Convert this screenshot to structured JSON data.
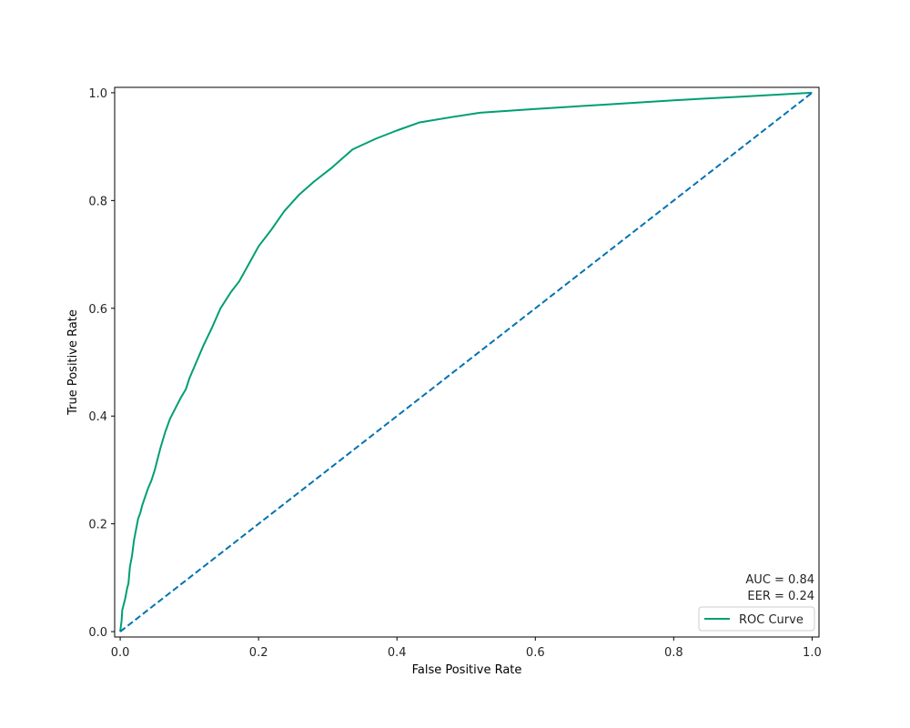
{
  "chart_data": {
    "type": "line",
    "xlabel": "False Positive Rate",
    "ylabel": "True Positive Rate",
    "xlim": [
      -0.008,
      1.01
    ],
    "ylim": [
      -0.01,
      1.01
    ],
    "xticks": [
      0.0,
      0.2,
      0.4,
      0.6,
      0.8,
      1.0
    ],
    "yticks": [
      0.0,
      0.2,
      0.4,
      0.6,
      0.8,
      1.0
    ],
    "xtick_labels": [
      "0.0",
      "0.2",
      "0.4",
      "0.6",
      "0.8",
      "1.0"
    ],
    "ytick_labels": [
      "0.0",
      "0.2",
      "0.4",
      "0.6",
      "0.8",
      "1.0"
    ],
    "grid": false,
    "legend_position": "lower-right",
    "annotations": [
      "AUC = 0.84",
      "EER = 0.24"
    ],
    "series": [
      {
        "name": "ROC Curve",
        "color": "#009e73",
        "style": "solid",
        "x": [
          0.0,
          0.002,
          0.003,
          0.005,
          0.007,
          0.01,
          0.012,
          0.014,
          0.017,
          0.02,
          0.023,
          0.026,
          0.029,
          0.032,
          0.036,
          0.04,
          0.045,
          0.05,
          0.055,
          0.058,
          0.065,
          0.072,
          0.08,
          0.088,
          0.095,
          0.1,
          0.11,
          0.12,
          0.133,
          0.145,
          0.16,
          0.172,
          0.185,
          0.2,
          0.218,
          0.237,
          0.258,
          0.28,
          0.305,
          0.336,
          0.37,
          0.4,
          0.433,
          0.48,
          0.52,
          0.6,
          0.7,
          0.8,
          0.9,
          1.0
        ],
        "y": [
          0.0,
          0.02,
          0.04,
          0.05,
          0.06,
          0.08,
          0.09,
          0.12,
          0.14,
          0.17,
          0.19,
          0.21,
          0.22,
          0.235,
          0.25,
          0.265,
          0.28,
          0.3,
          0.325,
          0.34,
          0.37,
          0.395,
          0.415,
          0.435,
          0.45,
          0.47,
          0.5,
          0.53,
          0.565,
          0.6,
          0.63,
          0.65,
          0.68,
          0.715,
          0.745,
          0.78,
          0.81,
          0.835,
          0.86,
          0.895,
          0.915,
          0.93,
          0.945,
          0.955,
          0.963,
          0.97,
          0.978,
          0.986,
          0.993,
          1.0
        ]
      },
      {
        "name": "",
        "color": "#0072b2",
        "style": "dashed",
        "x": [
          0.0,
          1.0
        ],
        "y": [
          0.0,
          1.0
        ]
      }
    ]
  }
}
